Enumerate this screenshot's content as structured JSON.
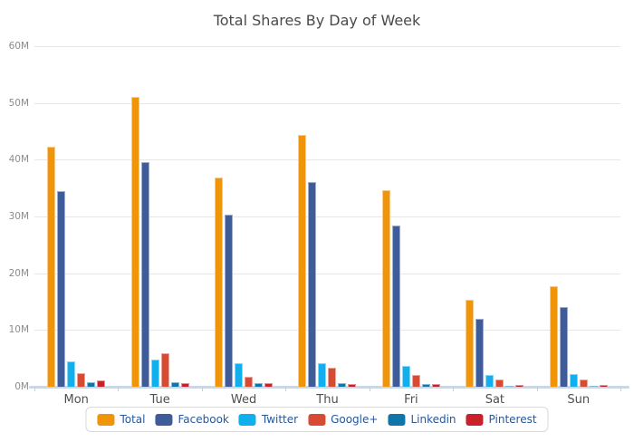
{
  "title": "Total Shares By Day of Week",
  "chart_data": {
    "type": "bar",
    "title": "Total Shares By Day of Week",
    "categories": [
      "Mon",
      "Tue",
      "Wed",
      "Thu",
      "Fri",
      "Sat",
      "Sun"
    ],
    "unit": "millions of shares",
    "series": [
      {
        "name": "Total",
        "color": "#F0940A",
        "values": [
          42.3,
          51.0,
          36.9,
          44.3,
          34.6,
          15.3,
          17.7
        ]
      },
      {
        "name": "Facebook",
        "color": "#3E5C9A",
        "values": [
          34.5,
          39.5,
          30.4,
          36.1,
          28.4,
          11.9,
          14.0
        ]
      },
      {
        "name": "Twitter",
        "color": "#12AFEE",
        "values": [
          4.4,
          4.8,
          4.1,
          4.2,
          3.7,
          2.1,
          2.2
        ]
      },
      {
        "name": "Google+",
        "color": "#D74B32",
        "values": [
          2.4,
          5.9,
          1.8,
          3.3,
          2.0,
          1.3,
          1.3
        ]
      },
      {
        "name": "Linkedin",
        "color": "#0E76A8",
        "values": [
          0.8,
          0.8,
          0.65,
          0.65,
          0.5,
          0.1,
          0.1
        ]
      },
      {
        "name": "Pinterest",
        "color": "#C9202B",
        "values": [
          1.1,
          0.7,
          0.6,
          0.5,
          0.5,
          0.4,
          0.4
        ]
      }
    ],
    "ylim": [
      0,
      60
    ],
    "ytick_step": 10,
    "ytick_labels": [
      "0M",
      "10M",
      "20M",
      "30M",
      "40M",
      "50M",
      "60M"
    ],
    "grid": true,
    "legend_position": "bottom"
  },
  "style": {
    "background": "#FFFFFF",
    "grid_line": "#E6E6E6",
    "axis_line": "#CBD7E5",
    "title_color": "#4A4A4A",
    "ytick_color": "#8C8C8C",
    "xtick_color": "#4F4F4F",
    "legend_text": "#24579D",
    "legend_border": "#D9D9D9"
  }
}
